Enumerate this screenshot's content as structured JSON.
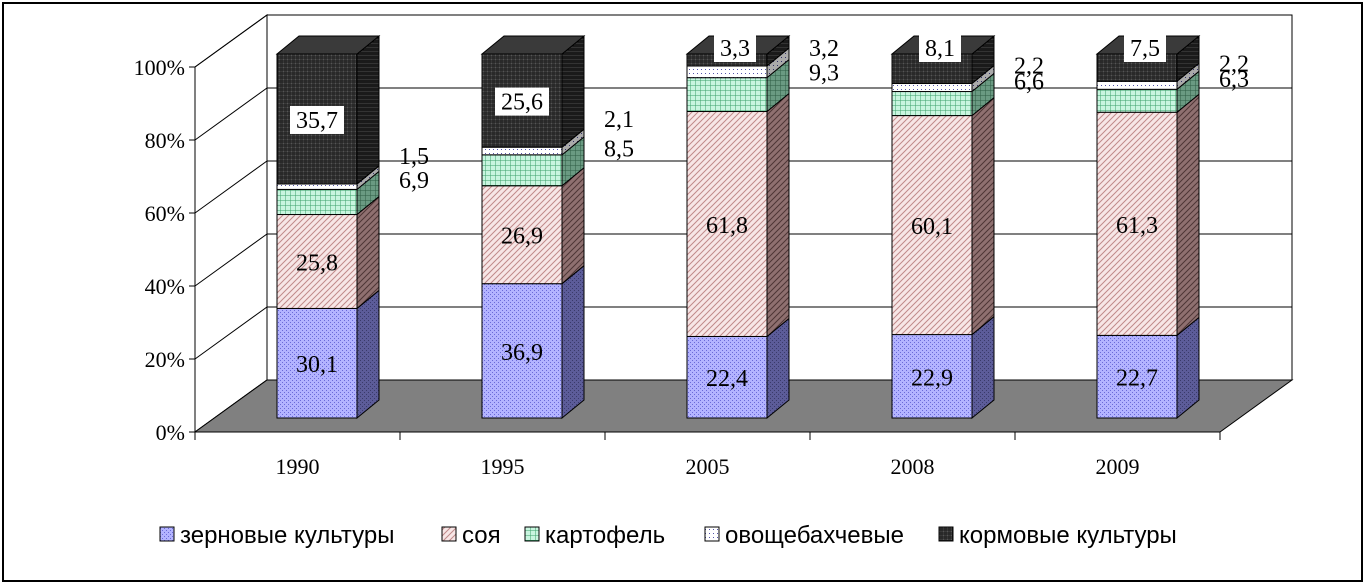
{
  "chart_data": {
    "type": "bar",
    "stacked": true,
    "percent_stacked": true,
    "three_d": true,
    "categories": [
      "1990",
      "1995",
      "2005",
      "2008",
      "2009"
    ],
    "series": [
      {
        "name": "зерновые культуры",
        "values": [
          30.1,
          36.9,
          22.4,
          22.9,
          22.7
        ],
        "color": "#9999ff",
        "pattern": "dots"
      },
      {
        "name": "соя",
        "values": [
          25.8,
          26.9,
          61.8,
          60.1,
          61.3
        ],
        "color": "#f5dede",
        "pattern": "diag"
      },
      {
        "name": "картофель",
        "values": [
          6.9,
          8.5,
          9.3,
          6.6,
          6.3
        ],
        "color": "#b4f0d2",
        "pattern": "grid"
      },
      {
        "name": "овощебахчевые",
        "values": [
          1.5,
          2.1,
          3.2,
          2.2,
          2.2
        ],
        "color": "#ffffff",
        "pattern": "dots"
      },
      {
        "name": "кормовые культуры",
        "values": [
          35.7,
          25.6,
          3.3,
          8.1,
          7.5
        ],
        "color": "#444444",
        "pattern": "dense"
      }
    ],
    "value_labels": [
      [
        "30,1",
        "36,9",
        "22,4",
        "22,9",
        "22,7"
      ],
      [
        "25,8",
        "26,9",
        "61,8",
        "60,1",
        "61,3"
      ],
      [
        "6,9",
        "8,5",
        "9,3",
        "6,6",
        "6,3"
      ],
      [
        "1,5",
        "2,1",
        "3,2",
        "2,2",
        "2,2"
      ],
      [
        "35,7",
        "25,6",
        "3,3",
        "8,1",
        "7,5"
      ]
    ],
    "y_ticks": [
      "0%",
      "20%",
      "40%",
      "60%",
      "80%",
      "100%"
    ],
    "ylim": [
      0,
      100
    ],
    "grid": true,
    "legend_position": "bottom",
    "title": "",
    "xlabel": "",
    "ylabel": ""
  }
}
